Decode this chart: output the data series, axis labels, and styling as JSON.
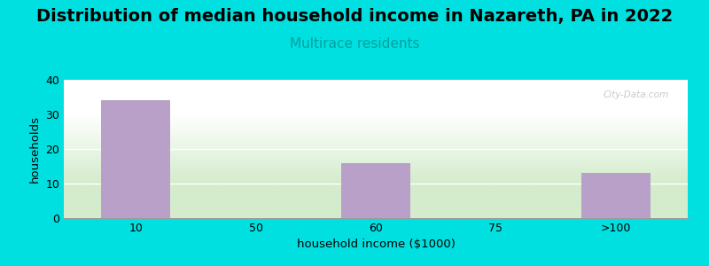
{
  "title": "Distribution of median household income in Nazareth, PA in 2022",
  "subtitle": "Multirace residents",
  "xlabel": "household income ($1000)",
  "ylabel": "households",
  "categories": [
    "10",
    "50",
    "60",
    "75",
    ">100"
  ],
  "values": [
    34,
    0,
    16,
    0,
    13
  ],
  "bar_color": "#b8a0c8",
  "background_color": "#00e0e0",
  "plot_bg_top": "#ffffff",
  "plot_bg_bottom": "#d4eccc",
  "ylim": [
    0,
    40
  ],
  "yticks": [
    0,
    10,
    20,
    30,
    40
  ],
  "title_fontsize": 14,
  "subtitle_fontsize": 11,
  "subtitle_color": "#00a0a0",
  "axis_label_fontsize": 9.5,
  "tick_fontsize": 9,
  "watermark": "City-Data.com"
}
